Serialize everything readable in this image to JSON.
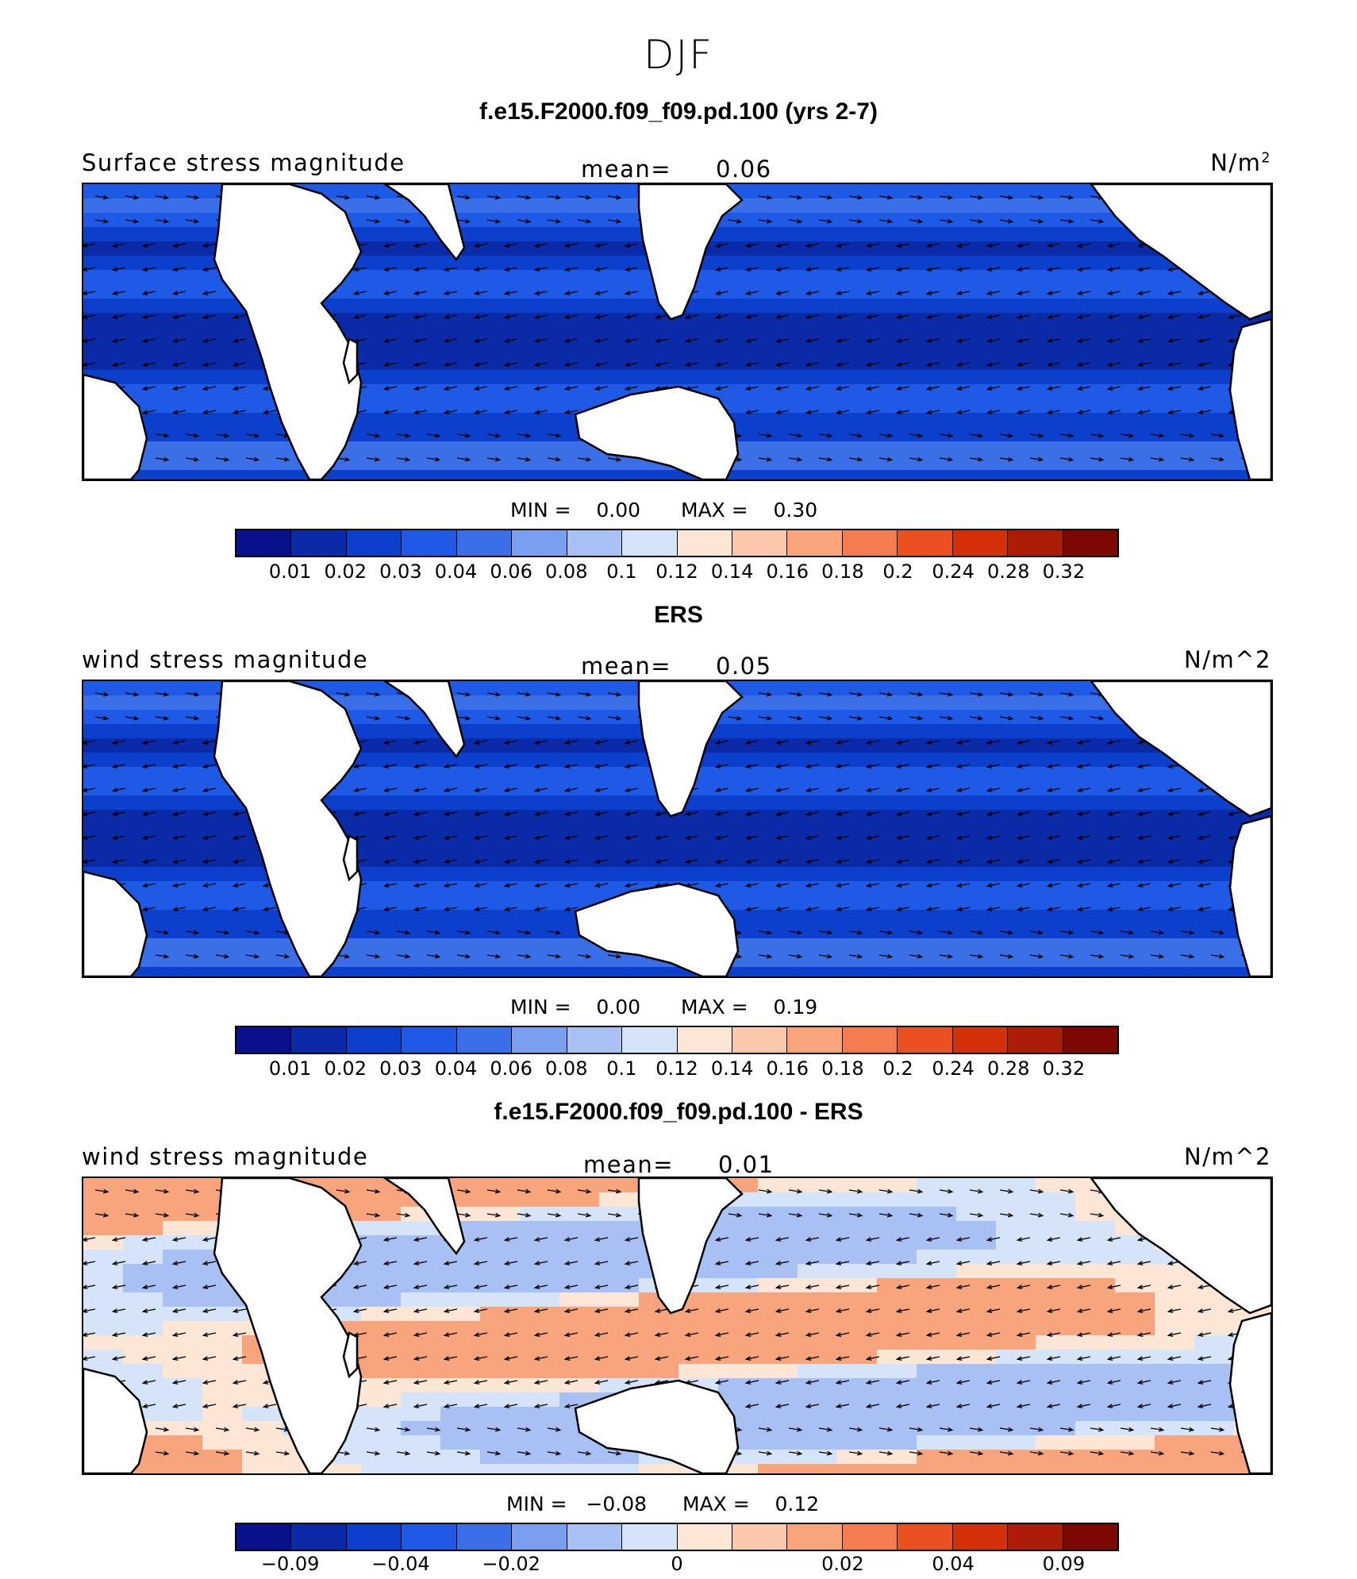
{
  "title": "DJF",
  "colors": {
    "scale": [
      "#08108c",
      "#0a2aa8",
      "#0c40cc",
      "#1e5ae6",
      "#3a6fe8",
      "#7a9ef0",
      "#a8c0f4",
      "#d6e4fa",
      "#fde6d6",
      "#fcc8ac",
      "#f8a47c",
      "#f47c4e",
      "#ea5020",
      "#d4300c",
      "#ac1c08",
      "#7c0804"
    ],
    "land": "#ffffff",
    "coast": "#000000"
  },
  "panels": [
    {
      "heading": "f.e15.F2000.f09_f09.pd.100 (yrs 2-7)",
      "variable": "Surface stress magnitude",
      "mean_label": "mean=",
      "mean_value": "0.06",
      "units": "N/m",
      "units_sup": "2",
      "min_label": "MIN =",
      "min_value": "0.00",
      "max_label": "MAX =",
      "max_value": "0.30",
      "colorbar_ticks": [
        "0.01",
        "0.02",
        "0.03",
        "0.04",
        "0.06",
        "0.08",
        "0.1",
        "0.12",
        "0.14",
        "0.16",
        "0.18",
        "0.2",
        "0.24",
        "0.28",
        "0.32"
      ]
    },
    {
      "heading": "ERS",
      "variable": "wind stress magnitude",
      "mean_label": "mean=",
      "mean_value": "0.05",
      "units": "N/m^2",
      "units_sup": "",
      "min_label": "MIN =",
      "min_value": "0.00",
      "max_label": "MAX =",
      "max_value": "0.19",
      "colorbar_ticks": [
        "0.01",
        "0.02",
        "0.03",
        "0.04",
        "0.06",
        "0.08",
        "0.1",
        "0.12",
        "0.14",
        "0.16",
        "0.18",
        "0.2",
        "0.24",
        "0.28",
        "0.32"
      ]
    },
    {
      "heading": "f.e15.F2000.f09_f09.pd.100 - ERS",
      "variable": "wind stress magnitude",
      "mean_label": "mean=",
      "mean_value": "0.01",
      "units": "N/m^2",
      "units_sup": "",
      "min_label": "MIN =",
      "min_value": "−0.08",
      "max_label": "MAX =",
      "max_value": "0.12",
      "colorbar_ticks": [
        "−0.09",
        "−0.04",
        "−0.02",
        "0",
        "0.02",
        "0.04",
        "0.09"
      ]
    }
  ]
}
